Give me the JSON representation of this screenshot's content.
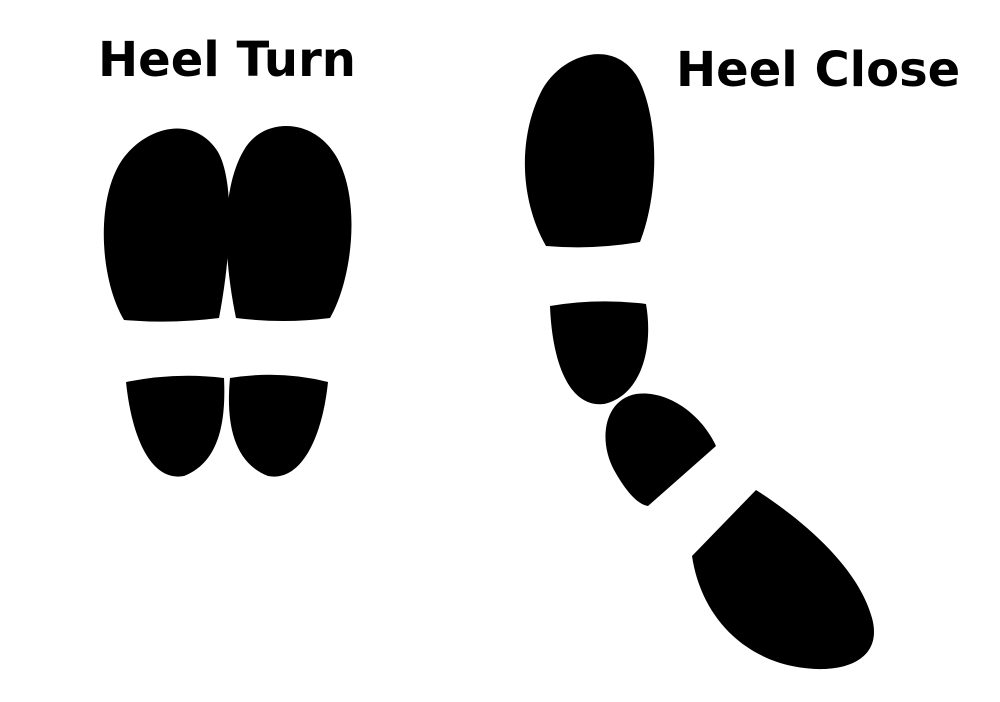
{
  "diagrams": [
    {
      "title": "Heel Turn"
    },
    {
      "title": "Heel Close"
    }
  ],
  "colors": {
    "background": "#ffffff",
    "footprint": "#000000",
    "text": "#000000"
  }
}
